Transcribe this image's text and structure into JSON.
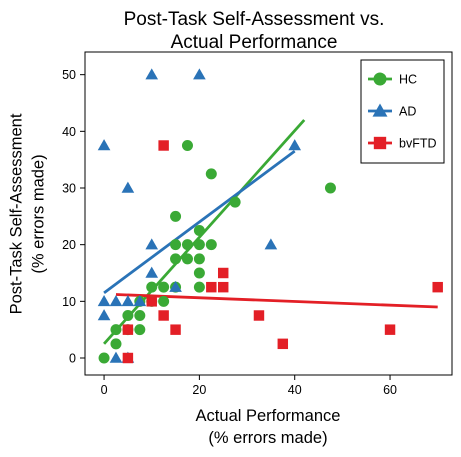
{
  "chart_data": {
    "type": "scatter",
    "title": [
      "Post-Task Self-Assessment vs.",
      "Actual Performance"
    ],
    "xlabel": [
      "Actual Performance",
      "(% errors made)"
    ],
    "ylabel": [
      "Post-Task Self-Assessment",
      "(% errors made)"
    ],
    "xlim": [
      -4,
      73
    ],
    "ylim": [
      -3,
      54
    ],
    "xticks": [
      0,
      20,
      40,
      60
    ],
    "yticks": [
      0,
      10,
      20,
      30,
      40,
      50
    ],
    "grid": false,
    "legend_position": "top-right",
    "series": [
      {
        "name": "HC",
        "color": "#3aa935",
        "marker": "circle",
        "points": [
          [
            0,
            0
          ],
          [
            2.5,
            2.5
          ],
          [
            2.5,
            5
          ],
          [
            5,
            5
          ],
          [
            5,
            7.5
          ],
          [
            7.5,
            5
          ],
          [
            7.5,
            7.5
          ],
          [
            7.5,
            10
          ],
          [
            10,
            10
          ],
          [
            12.5,
            10
          ],
          [
            10,
            12.5
          ],
          [
            12.5,
            12.5
          ],
          [
            15,
            12.5
          ],
          [
            15,
            17.5
          ],
          [
            15,
            20
          ],
          [
            15,
            25
          ],
          [
            17.5,
            17.5
          ],
          [
            17.5,
            20
          ],
          [
            17.5,
            37.5
          ],
          [
            20,
            12.5
          ],
          [
            20,
            15
          ],
          [
            20,
            17.5
          ],
          [
            20,
            20
          ],
          [
            20,
            22.5
          ],
          [
            22.5,
            20
          ],
          [
            22.5,
            32.5
          ],
          [
            27.5,
            27.5
          ],
          [
            47.5,
            30
          ]
        ],
        "fit": {
          "x": [
            0,
            42
          ],
          "y": [
            2.5,
            42
          ]
        }
      },
      {
        "name": "AD",
        "color": "#2a73b7",
        "marker": "triangle",
        "points": [
          [
            0,
            7.5
          ],
          [
            0,
            10
          ],
          [
            0,
            37.5
          ],
          [
            2.5,
            0
          ],
          [
            2.5,
            10
          ],
          [
            5,
            0
          ],
          [
            5,
            10
          ],
          [
            5,
            30
          ],
          [
            7.5,
            10
          ],
          [
            10,
            15
          ],
          [
            10,
            20
          ],
          [
            10,
            50
          ],
          [
            15,
            12.5
          ],
          [
            20,
            50
          ],
          [
            35,
            20
          ],
          [
            40,
            37.5
          ]
        ],
        "fit": {
          "x": [
            0,
            40
          ],
          "y": [
            11.5,
            36.5
          ]
        }
      },
      {
        "name": "bvFTD",
        "color": "#e31f26",
        "marker": "square",
        "points": [
          [
            5,
            0
          ],
          [
            5,
            5
          ],
          [
            10,
            10
          ],
          [
            12.5,
            7.5
          ],
          [
            12.5,
            37.5
          ],
          [
            15,
            5
          ],
          [
            22.5,
            12.5
          ],
          [
            25,
            12.5
          ],
          [
            25,
            15
          ],
          [
            32.5,
            7.5
          ],
          [
            37.5,
            2.5
          ],
          [
            60,
            5
          ],
          [
            70,
            12.5
          ]
        ],
        "fit": {
          "x": [
            2.5,
            70
          ],
          "y": [
            11.2,
            9
          ]
        }
      }
    ]
  }
}
